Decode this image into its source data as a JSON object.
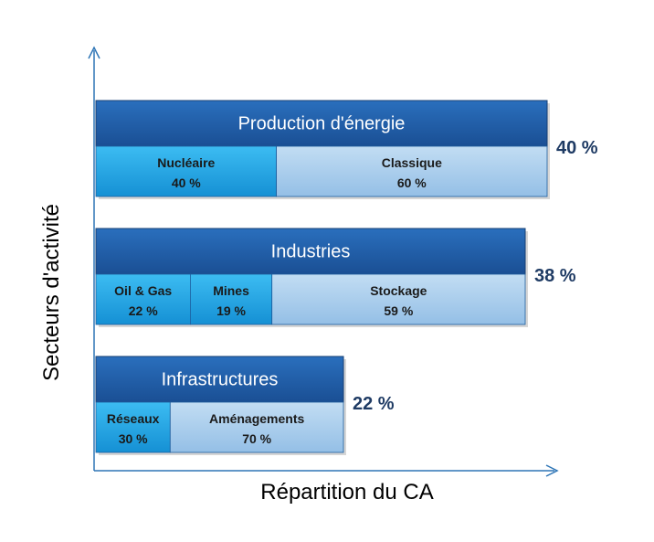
{
  "colors": {
    "header": "#1f5da8",
    "header_edge": "#163f74",
    "primary_segment": "#1ea6e6",
    "secondary_segment": "#a9cdec",
    "axis": "#2e75b6",
    "share_text": "#1f3b64"
  },
  "chart_data": {
    "type": "bar",
    "orientation": "horizontal",
    "title": "",
    "xlabel": "Répartition du CA",
    "ylabel": "Secteurs d'activité",
    "grid": false,
    "unit": "%",
    "sectors": [
      {
        "name": "Production d'énergie",
        "share": 40,
        "share_label": "40 %",
        "segments": [
          {
            "name": "Nucléaire",
            "value": 40,
            "value_label": "40 %"
          },
          {
            "name": "Classique",
            "value": 60,
            "value_label": "60 %"
          }
        ]
      },
      {
        "name": "Industries",
        "share": 38,
        "share_label": "38 %",
        "segments": [
          {
            "name": "Oil & Gas",
            "value": 22,
            "value_label": "22 %"
          },
          {
            "name": "Mines",
            "value": 19,
            "value_label": "19 %"
          },
          {
            "name": "Stockage",
            "value": 59,
            "value_label": "59 %"
          }
        ]
      },
      {
        "name": "Infrastructures",
        "share": 22,
        "share_label": "22 %",
        "segments": [
          {
            "name": "Réseaux",
            "value": 30,
            "value_label": "30 %"
          },
          {
            "name": "Aménagements",
            "value": 70,
            "value_label": "70 %"
          }
        ]
      }
    ]
  }
}
